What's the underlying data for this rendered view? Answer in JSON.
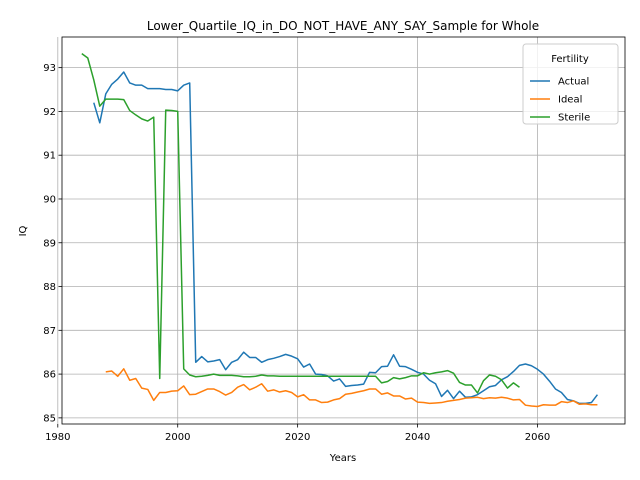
{
  "chart_data": {
    "type": "line",
    "title": "Lower_Quartile_IQ_in_DO_NOT_HAVE_ANY_SAY_Sample for Whole",
    "xlabel": "Years",
    "ylabel": "IQ",
    "xlim": [
      1980.7,
      2074.6
    ],
    "ylim": [
      84.86,
      93.7
    ],
    "xticks": [
      1980,
      2000,
      2020,
      2040,
      2060
    ],
    "yticks": [
      85,
      86,
      87,
      88,
      89,
      90,
      91,
      92,
      93
    ],
    "grid": true,
    "legend": {
      "title": "Fertility",
      "placement": "top-right"
    },
    "series": [
      {
        "name": "Actual",
        "color": "#1f77b4",
        "x": [
          1986,
          1987,
          1988,
          1989,
          1990,
          1991,
          1992,
          1993,
          1994,
          1995,
          1996,
          1997,
          1998,
          1999,
          2000,
          2001,
          2002,
          2003,
          2004,
          2005,
          2006,
          2007,
          2008,
          2009,
          2010,
          2011,
          2012,
          2013,
          2014,
          2015,
          2016,
          2017,
          2018,
          2019,
          2020,
          2021,
          2022,
          2023,
          2024,
          2025,
          2026,
          2027,
          2028,
          2029,
          2030,
          2031,
          2032,
          2033,
          2034,
          2035,
          2036,
          2037,
          2038,
          2039,
          2040,
          2041,
          2042,
          2043,
          2044,
          2045,
          2046,
          2047,
          2048,
          2049,
          2050,
          2051,
          2052,
          2053,
          2054,
          2055,
          2056,
          2057,
          2058,
          2059,
          2060,
          2061,
          2062,
          2063,
          2064,
          2065,
          2066,
          2067,
          2068,
          2069,
          2070
        ],
        "y": [
          92.2,
          91.74,
          92.4,
          92.62,
          92.74,
          92.9,
          92.65,
          92.6,
          92.6,
          92.52,
          92.52,
          92.52,
          92.5,
          92.5,
          92.47,
          92.6,
          92.65,
          86.27,
          86.4,
          86.28,
          86.3,
          86.33,
          86.1,
          86.27,
          86.33,
          86.5,
          86.38,
          86.38,
          86.27,
          86.33,
          86.36,
          86.4,
          86.45,
          86.41,
          86.35,
          86.16,
          86.23,
          86.0,
          85.99,
          85.96,
          85.84,
          85.89,
          85.72,
          85.74,
          85.75,
          85.77,
          86.04,
          86.03,
          86.17,
          86.18,
          86.44,
          86.18,
          86.17,
          86.11,
          86.04,
          86.0,
          85.86,
          85.78,
          85.49,
          85.63,
          85.44,
          85.61,
          85.47,
          85.48,
          85.53,
          85.62,
          85.71,
          85.74,
          85.87,
          85.94,
          86.06,
          86.2,
          86.23,
          86.19,
          86.11,
          86.0,
          85.84,
          85.66,
          85.58,
          85.42,
          85.39,
          85.33,
          85.33,
          85.35,
          85.53
        ]
      },
      {
        "name": "Ideal",
        "color": "#ff7f0e",
        "x": [
          1988,
          1989,
          1990,
          1991,
          1992,
          1993,
          1994,
          1995,
          1996,
          1997,
          1998,
          1999,
          2000,
          2001,
          2002,
          2003,
          2004,
          2005,
          2006,
          2007,
          2008,
          2009,
          2010,
          2011,
          2012,
          2013,
          2014,
          2015,
          2016,
          2017,
          2018,
          2019,
          2020,
          2021,
          2022,
          2023,
          2024,
          2025,
          2026,
          2027,
          2028,
          2029,
          2030,
          2031,
          2032,
          2033,
          2034,
          2035,
          2036,
          2037,
          2038,
          2039,
          2040,
          2041,
          2042,
          2043,
          2044,
          2045,
          2046,
          2047,
          2048,
          2049,
          2050,
          2051,
          2052,
          2053,
          2054,
          2055,
          2056,
          2057,
          2058,
          2059,
          2060,
          2061,
          2062,
          2063,
          2064,
          2065,
          2066,
          2067,
          2068,
          2069,
          2070
        ],
        "y": [
          86.05,
          86.07,
          85.95,
          86.12,
          85.86,
          85.9,
          85.68,
          85.65,
          85.4,
          85.58,
          85.58,
          85.61,
          85.62,
          85.73,
          85.53,
          85.54,
          85.6,
          85.66,
          85.66,
          85.6,
          85.52,
          85.58,
          85.7,
          85.76,
          85.64,
          85.7,
          85.78,
          85.61,
          85.64,
          85.59,
          85.62,
          85.58,
          85.48,
          85.53,
          85.41,
          85.41,
          85.35,
          85.36,
          85.41,
          85.44,
          85.54,
          85.56,
          85.59,
          85.62,
          85.66,
          85.66,
          85.54,
          85.57,
          85.5,
          85.5,
          85.43,
          85.45,
          85.36,
          85.35,
          85.33,
          85.34,
          85.35,
          85.38,
          85.4,
          85.42,
          85.45,
          85.46,
          85.47,
          85.44,
          85.46,
          85.45,
          85.47,
          85.45,
          85.41,
          85.42,
          85.29,
          85.27,
          85.26,
          85.3,
          85.29,
          85.29,
          85.37,
          85.35,
          85.39,
          85.31,
          85.32,
          85.3,
          85.3
        ]
      },
      {
        "name": "Sterile",
        "color": "#2ca02c",
        "x": [
          1984,
          1985,
          1986,
          1987,
          1988,
          1989,
          1990,
          1991,
          1992,
          1993,
          1994,
          1995,
          1996,
          1997,
          1998,
          1999,
          2000,
          2001,
          2002,
          2003,
          2004,
          2005,
          2006,
          2007,
          2008,
          2009,
          2010,
          2011,
          2012,
          2013,
          2014,
          2015,
          2016,
          2017,
          2018,
          2019,
          2020,
          2021,
          2022,
          2023,
          2024,
          2025,
          2026,
          2027,
          2028,
          2029,
          2030,
          2031,
          2032,
          2033,
          2034,
          2035,
          2036,
          2037,
          2038,
          2039,
          2040,
          2041,
          2042,
          2043,
          2044,
          2045,
          2046,
          2047,
          2048,
          2049,
          2050,
          2051,
          2052,
          2053,
          2054,
          2055,
          2056,
          2057
        ],
        "y": [
          93.32,
          93.22,
          92.72,
          92.12,
          92.28,
          92.28,
          92.28,
          92.27,
          92.02,
          91.92,
          91.83,
          91.78,
          91.87,
          85.9,
          92.03,
          92.02,
          92.0,
          86.12,
          85.98,
          85.94,
          85.95,
          85.97,
          86.0,
          85.97,
          85.97,
          85.97,
          85.96,
          85.94,
          85.94,
          85.95,
          85.98,
          85.96,
          85.96,
          85.95,
          85.95,
          85.95,
          85.95,
          85.95,
          85.95,
          85.95,
          85.95,
          85.95,
          85.95,
          85.95,
          85.95,
          85.95,
          85.95,
          85.95,
          85.95,
          85.95,
          85.8,
          85.83,
          85.92,
          85.89,
          85.92,
          85.96,
          85.96,
          86.03,
          86.0,
          86.03,
          86.05,
          86.08,
          86.02,
          85.81,
          85.75,
          85.75,
          85.57,
          85.85,
          85.98,
          85.95,
          85.87,
          85.68,
          85.8,
          85.7
        ]
      }
    ]
  }
}
